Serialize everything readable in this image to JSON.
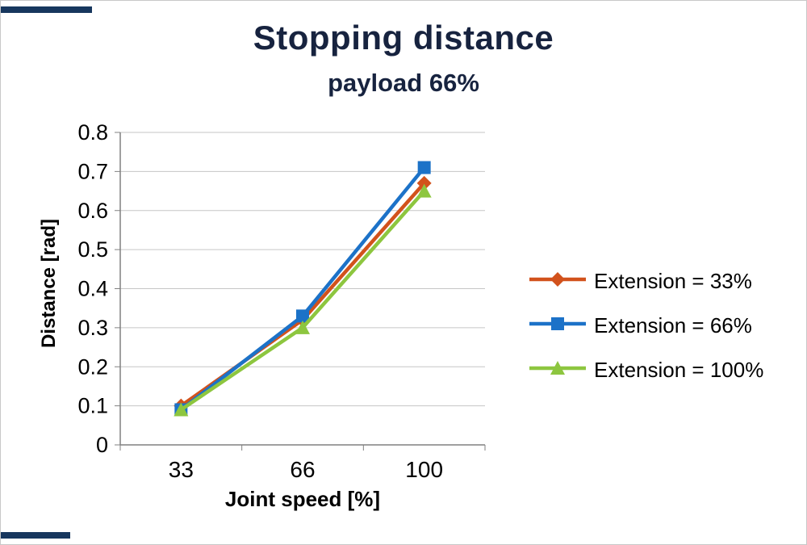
{
  "page": {
    "background": "#FFFFFF",
    "accent_color": "#17375E"
  },
  "chart_data": {
    "type": "line",
    "title": "Stopping distance",
    "subtitle": "payload 66%",
    "xlabel": "Joint speed [%]",
    "ylabel": "Distance [rad]",
    "categories": [
      "33",
      "66",
      "100"
    ],
    "series": [
      {
        "name": "Extension = 33%",
        "marker": "diamond",
        "color": "#D2521C",
        "values": [
          0.1,
          0.32,
          0.67
        ]
      },
      {
        "name": "Extension = 66%",
        "marker": "square",
        "color": "#1C72C8",
        "values": [
          0.09,
          0.33,
          0.71
        ]
      },
      {
        "name": "Extension = 100%",
        "marker": "triangle",
        "color": "#8DC63F",
        "values": [
          0.09,
          0.3,
          0.65
        ]
      }
    ],
    "ylim": [
      0,
      0.8
    ],
    "ytick_step": 0.1,
    "grid": true,
    "legend_position": "right",
    "gridline_color": "#C6C6C6",
    "axis_color": "#808080",
    "title_color": "#17233F",
    "text_color": "#000000"
  }
}
